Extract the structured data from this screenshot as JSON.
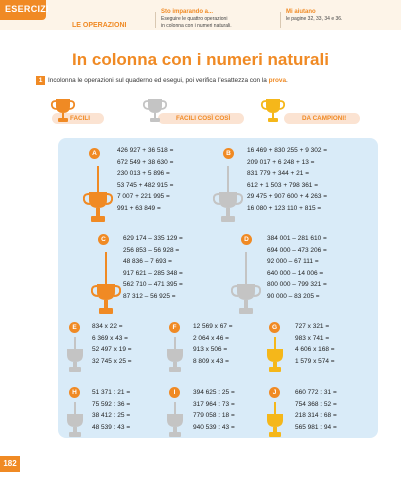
{
  "header": {
    "tab_label": "ESERCIZI",
    "section": "LE OPERAZIONI",
    "objective_heading": "Sto imparando a...",
    "objective_line1": "Eseguire le quattro operazioni",
    "objective_line2": "in colonna con i numeri naturali.",
    "help_heading": "Mi aiutano",
    "help_text": "le pagine 32, 33, 34 e 36."
  },
  "title": "In colonna con i numeri naturali",
  "instruction": {
    "number": "1",
    "text": "Incolonna le operazioni sul quaderno ed esegui, poi verifica l’esattezza con la ",
    "highlight": "prova",
    "end": "."
  },
  "levels": [
    {
      "label": "FACILI",
      "color": "#f08a24"
    },
    {
      "label": "FACILI COSÌ COSÌ",
      "color": "#bdbdbd"
    },
    {
      "label": "DA CAMPIONI!",
      "color": "#f5b71a"
    }
  ],
  "exercises": {
    "A": {
      "letter": "A",
      "ops": [
        "426 927 + 36 518 =",
        "672 549 + 38 630 =",
        "230 013 + 5 896 =",
        "53 745 + 482 915 =",
        "7 007 + 221 995 =",
        "991 + 63 849 ="
      ]
    },
    "B": {
      "letter": "B",
      "ops": [
        "16 469 + 830 255 + 9 302 =",
        "209 017 + 6 248 + 13 =",
        "831 779 + 344 + 21 =",
        "612 + 1 503 + 798 361 =",
        "29 475 + 907 600 + 4 263 =",
        "16 080 + 123 110 + 815 ="
      ]
    },
    "C": {
      "letter": "C",
      "ops": [
        "629 174 – 335 129 =",
        "256 853 – 56 928 =",
        "48 836 – 7 693 =",
        "917 621 – 285 348 =",
        "562 710 – 471 395 =",
        "87 312 – 56 925 ="
      ]
    },
    "D": {
      "letter": "D",
      "ops": [
        "384 001 – 281 610 =",
        "694 000 – 473 206 =",
        "92 000 – 67 111 =",
        "640 000 – 14 006 =",
        "800 000 – 799 321 =",
        "90 000 – 83 205 ="
      ]
    },
    "E": {
      "letter": "E",
      "ops": [
        "834 x 22 =",
        "6 369 x 43 =",
        "52 497 x 19 =",
        "32 745 x 25 ="
      ]
    },
    "F": {
      "letter": "F",
      "ops": [
        "12 569 x 67 =",
        "2 064 x 46 =",
        "913 x 506 =",
        "8 809 x 43 ="
      ]
    },
    "G": {
      "letter": "G",
      "ops": [
        "727 x 321 =",
        "983 x 741 =",
        "4 606 x 168 =",
        "1 579 x 574 ="
      ]
    },
    "H": {
      "letter": "H",
      "ops": [
        "51 371 : 21 =",
        "75 592 : 36 =",
        "38 412 : 25 =",
        "48 539 : 43 ="
      ]
    },
    "I": {
      "letter": "I",
      "ops": [
        "394 625 : 25 =",
        "317 964 : 73 =",
        "779 058 : 18 =",
        "940 539 : 43 ="
      ]
    },
    "J": {
      "letter": "J",
      "ops": [
        "660 772 : 31 =",
        "754 368 : 52 =",
        "218 314 : 68 =",
        "565 981 : 94 ="
      ]
    }
  },
  "page_number": "182"
}
